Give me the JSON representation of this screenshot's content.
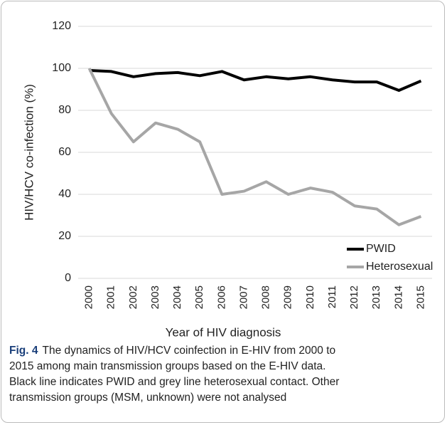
{
  "chart_data": {
    "type": "line",
    "x_label": "Year of HIV diagnosis",
    "y_label": "HIV/HCV co-infection (%)",
    "categories": [
      "2000",
      "2001",
      "2002",
      "2003",
      "2004",
      "2005",
      "2006",
      "2007",
      "2008",
      "2009",
      "2010",
      "2011",
      "2012",
      "2013",
      "2014",
      "2015"
    ],
    "series": [
      {
        "name": "PWID",
        "color": "#000000",
        "values": [
          99,
          98.5,
          96,
          97.5,
          98,
          96.5,
          98.5,
          94.5,
          96,
          95,
          96,
          94.5,
          93.5,
          93.5,
          89.5,
          94
        ]
      },
      {
        "name": "Heterosexual",
        "color": "#a6a6a6",
        "values": [
          100,
          78.5,
          65,
          74,
          71,
          65,
          40,
          41.5,
          46,
          40,
          43,
          41,
          34.5,
          33,
          25.5,
          29.5
        ]
      }
    ],
    "ylim": [
      0,
      120
    ],
    "yticks": [
      0,
      20,
      40,
      60,
      80,
      100,
      120
    ],
    "grid": true,
    "legend": "lower right"
  },
  "caption": {
    "label": "Fig. 4",
    "lines": [
      "The dynamics of HIV/HCV coinfection in E-HIV from 2000 to",
      "2015 among main transmission groups based on the E-HIV data.",
      "Black line indicates PWID and grey line heterosexual contact. Other",
      "transmission groups (MSM, unknown) were not analysed"
    ]
  }
}
